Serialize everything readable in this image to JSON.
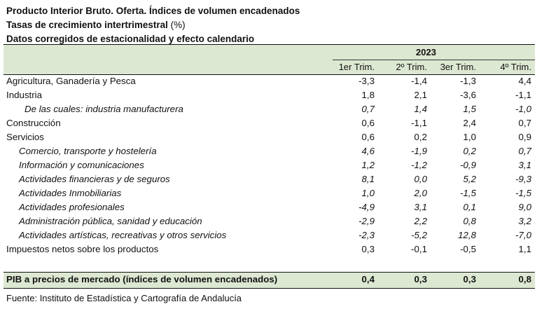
{
  "title_line1": "Producto Interior Bruto. Oferta. Índices de volumen encadenados",
  "title_line2": "Tasas de crecimiento intertrimestral",
  "title_line2_unit": "(%)",
  "title_line3": "Datos corregidos de estacionalidad y efecto calendario",
  "year": "2023",
  "columns": [
    "1er Trim.",
    "2º Trim.",
    "3er Trim.",
    "4º Trim."
  ],
  "rows": [
    {
      "label": "Agricultura, Ganadería y Pesca",
      "values": [
        "-3,3",
        "-1,4",
        "-1,3",
        "4,4"
      ]
    },
    {
      "label": "Industria",
      "values": [
        "1,8",
        "2,1",
        "-3,6",
        "-1,1"
      ]
    },
    {
      "label": "De las cuales: industria manufacturera",
      "values": [
        "0,7",
        "1,4",
        "1,5",
        "-1,0"
      ]
    },
    {
      "label": "Construcción",
      "values": [
        "0,6",
        "-1,1",
        "2,4",
        "0,7"
      ]
    },
    {
      "label": "Servicios",
      "values": [
        "0,6",
        "0,2",
        "1,0",
        "0,9"
      ]
    },
    {
      "label": "Comercio, transporte y hostelería",
      "values": [
        "4,6",
        "-1,9",
        "0,2",
        "0,7"
      ]
    },
    {
      "label": "Información y comunicaciones",
      "values": [
        "1,2",
        "-1,2",
        "-0,9",
        "3,1"
      ]
    },
    {
      "label": "Actividades financieras y de seguros",
      "values": [
        "8,1",
        "0,0",
        "5,2",
        "-9,3"
      ]
    },
    {
      "label": "Actividades Inmobiliarias",
      "values": [
        "1,0",
        "2,0",
        "-1,5",
        "-1,5"
      ]
    },
    {
      "label": "Actividades profesionales",
      "values": [
        "-4,9",
        "3,1",
        "0,1",
        "9,0"
      ]
    },
    {
      "label": "Administración pública, sanidad y educación",
      "values": [
        "-2,9",
        "2,2",
        "0,8",
        "3,2"
      ]
    },
    {
      "label": "Actividades artísticas, recreativas y otros servicios",
      "values": [
        "-2,3",
        "-5,2",
        "12,8",
        "-7,0"
      ]
    },
    {
      "label": "Impuestos netos sobre los productos",
      "values": [
        "0,3",
        "-0,1",
        "-0,5",
        "1,1"
      ]
    }
  ],
  "total": {
    "label": "PIB a precios de mercado (índices de volumen encadenados)",
    "values": [
      "0,4",
      "0,3",
      "0,3",
      "0,8"
    ]
  },
  "source": "Fuente: Instituto de Estadística y Cartografía de Andalucía"
}
